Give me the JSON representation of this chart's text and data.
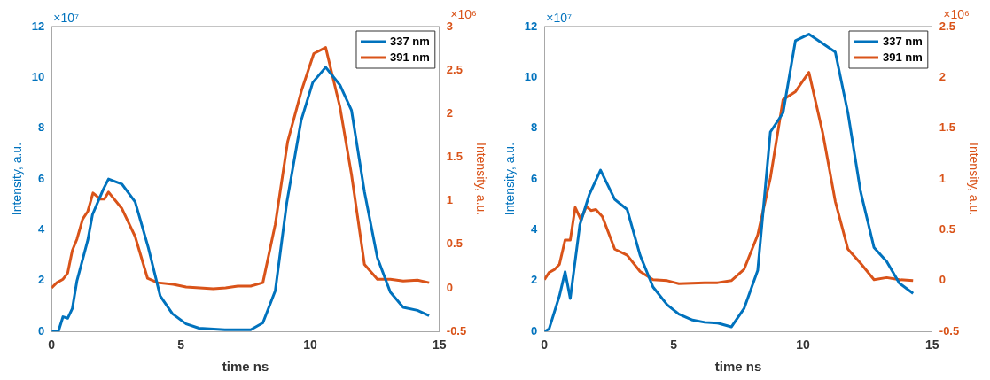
{
  "chart_data": [
    {
      "type": "line",
      "xlabel": "time ns",
      "ylabel": "Intensity, a.u.",
      "y2label": "Intensity, a.u.",
      "annotations": [
        "×10⁷",
        "×10⁶"
      ],
      "xlim": [
        0,
        15
      ],
      "xticks": [
        0,
        5,
        10,
        15
      ],
      "ylim": [
        0,
        12
      ],
      "yticks": [
        0,
        2,
        4,
        6,
        8,
        10,
        12
      ],
      "y2lim": [
        -0.5,
        3
      ],
      "y2ticks": [
        -0.5,
        0,
        0.5,
        1,
        1.5,
        2,
        2.5,
        3
      ],
      "legend": "top right",
      "grid": false,
      "series": [
        {
          "name": "337 nm",
          "color": "#0072bd",
          "x": [
            0,
            0.26,
            0.44,
            0.62,
            0.8,
            0.98,
            1.4,
            1.58,
            2.0,
            2.2,
            2.72,
            3.23,
            3.74,
            4.2,
            4.67,
            5.2,
            5.7,
            6.7,
            7.7,
            8.17,
            8.65,
            9.1,
            9.65,
            10.1,
            10.6,
            11.15,
            11.6,
            12.1,
            12.6,
            13.1,
            13.6,
            14.15,
            14.6
          ],
          "values": [
            0,
            0,
            0.58,
            0.52,
            0.9,
            2.0,
            3.6,
            4.6,
            5.6,
            6.0,
            5.8,
            5.1,
            3.3,
            1.4,
            0.7,
            0.3,
            0.13,
            0.07,
            0.07,
            0.34,
            1.6,
            5.1,
            8.3,
            9.8,
            10.4,
            9.7,
            8.7,
            5.5,
            2.9,
            1.55,
            0.95,
            0.83,
            0.62
          ]
        },
        {
          "name": "391 nm",
          "color": "#d95319",
          "axis": "y2",
          "x": [
            0,
            0.2,
            0.44,
            0.62,
            0.8,
            0.98,
            1.2,
            1.4,
            1.6,
            1.88,
            2.04,
            2.2,
            2.72,
            3.23,
            3.71,
            4.1,
            4.7,
            5.2,
            6.25,
            6.73,
            7.2,
            7.7,
            8.17,
            8.65,
            9.13,
            9.66,
            10.14,
            10.6,
            11.15,
            11.6,
            12.1,
            12.6,
            13.1,
            13.6,
            14.15,
            14.6
          ],
          "values": [
            0,
            0.06,
            0.1,
            0.17,
            0.43,
            0.56,
            0.79,
            0.88,
            1.09,
            1.02,
            1.02,
            1.1,
            0.91,
            0.59,
            0.11,
            0.06,
            0.04,
            0.01,
            -0.01,
            0,
            0.02,
            0.02,
            0.06,
            0.73,
            1.68,
            2.26,
            2.69,
            2.76,
            2.08,
            1.3,
            0.27,
            0.1,
            0.1,
            0.08,
            0.09,
            0.06
          ]
        }
      ]
    },
    {
      "type": "line",
      "xlabel": "time ns",
      "ylabel": "Intensity, a.u.",
      "y2label": "Intensity, a.u.",
      "annotations": [
        "×10⁷",
        "×10⁶"
      ],
      "xlim": [
        0,
        15
      ],
      "xticks": [
        0,
        5,
        10,
        15
      ],
      "ylim": [
        0,
        12
      ],
      "yticks": [
        0,
        2,
        4,
        6,
        8,
        10,
        12
      ],
      "y2lim": [
        -0.5,
        2.5
      ],
      "y2ticks": [
        -0.5,
        0,
        0.5,
        1,
        1.5,
        2,
        2.5
      ],
      "legend": "top right",
      "grid": false,
      "series": [
        {
          "name": "337 nm",
          "color": "#0072bd",
          "x": [
            0,
            0.18,
            0.58,
            0.8,
            1.0,
            1.37,
            1.74,
            2.17,
            2.72,
            3.2,
            3.7,
            4.2,
            4.75,
            5.2,
            5.73,
            6.2,
            6.7,
            7.23,
            7.72,
            8.25,
            8.74,
            9.23,
            9.71,
            10.23,
            11.25,
            11.74,
            12.23,
            12.75,
            13.24,
            13.73,
            14.26
          ],
          "values": [
            0,
            0.1,
            1.4,
            2.35,
            1.3,
            4.2,
            5.4,
            6.35,
            5.2,
            4.8,
            3.0,
            1.75,
            1.05,
            0.68,
            0.45,
            0.36,
            0.33,
            0.18,
            0.9,
            2.4,
            7.85,
            8.6,
            11.45,
            11.7,
            11.0,
            8.6,
            5.5,
            3.3,
            2.75,
            1.9,
            1.5
          ]
        },
        {
          "name": "391 nm",
          "color": "#d95319",
          "axis": "y2",
          "x": [
            0,
            0.18,
            0.39,
            0.58,
            0.8,
            1.0,
            1.19,
            1.41,
            1.62,
            1.8,
            1.99,
            2.24,
            2.72,
            3.2,
            3.7,
            4.2,
            4.75,
            5.2,
            6.2,
            6.7,
            7.23,
            7.72,
            8.25,
            8.74,
            9.23,
            9.71,
            10.23,
            10.76,
            11.25,
            11.74,
            12.23,
            12.75,
            13.24,
            13.73,
            14.26
          ],
          "values": [
            0.01,
            0.08,
            0.11,
            0.16,
            0.4,
            0.4,
            0.72,
            0.6,
            0.73,
            0.69,
            0.7,
            0.63,
            0.31,
            0.25,
            0.09,
            0.01,
            0,
            -0.03,
            -0.02,
            -0.02,
            0,
            0.11,
            0.45,
            1.01,
            1.78,
            1.86,
            2.05,
            1.46,
            0.78,
            0.31,
            0.17,
            0.01,
            0.03,
            0.01,
            0
          ]
        }
      ]
    }
  ]
}
